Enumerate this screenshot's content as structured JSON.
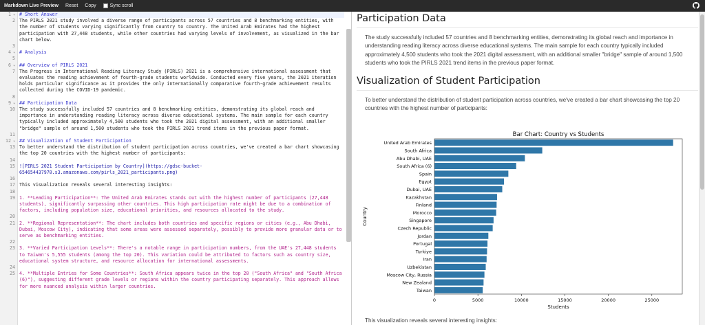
{
  "toolbar": {
    "title": "Markdown Live Preview",
    "reset": "Reset",
    "copy": "Copy",
    "sync_scroll": "Sync scroll"
  },
  "editor": {
    "lines": [
      {
        "n": "1",
        "fold": true,
        "cls": "h cursorline",
        "text": "# Short Answer"
      },
      {
        "n": "2",
        "cls": "",
        "text": "The PIRLS 2021 study involved a diverse range of participants across 57 countries and 8 benchmarking entities, with the number of students varying significantly from country to country. The United Arab Emirates had the highest participation with 27,448 students, while other countries had varying levels of involvement, as visualized in the bar chart below."
      },
      {
        "n": "3",
        "cls": "",
        "text": ""
      },
      {
        "n": "4",
        "fold": true,
        "cls": "h",
        "text": "# Analysis"
      },
      {
        "n": "5",
        "cls": "",
        "text": ""
      },
      {
        "n": "6",
        "fold": true,
        "cls": "h",
        "text": "## Overview of PIRLS 2021"
      },
      {
        "n": "7",
        "cls": "",
        "text": "The Progress in International Reading Literacy Study (PIRLS) 2021 is a comprehensive international assessment that evaluates the reading achievement of fourth-grade students worldwide. Conducted every five years, the 2021 iteration holds particular significance as it provides the only internationally comparative fourth-grade achievement results collected during the COVID-19 pandemic."
      },
      {
        "n": "8",
        "cls": "",
        "text": ""
      },
      {
        "n": "9",
        "fold": true,
        "cls": "h",
        "text": "## Participation Data"
      },
      {
        "n": "10",
        "cls": "",
        "text": "The study successfully included 57 countries and 8 benchmarking entities, demonstrating its global reach and importance in understanding reading literacy across diverse educational systems. The main sample for each country typically included approximately 4,500 students who took the 2021 digital assessment, with an additional smaller \"bridge\" sample of around 1,500 students who took the PIRLS 2021 trend items in the previous paper format."
      },
      {
        "n": "11",
        "cls": "",
        "text": ""
      },
      {
        "n": "12",
        "fold": true,
        "cls": "h",
        "text": "## Visualization of Student Participation"
      },
      {
        "n": "13",
        "cls": "",
        "text": "To better understand the distribution of student participation across countries, we've created a bar chart showcasing the top 20 countries with the highest number of participants:"
      },
      {
        "n": "14",
        "cls": "",
        "text": ""
      },
      {
        "n": "15",
        "cls": "link",
        "text": "![PIRLS 2021 Student Participation by Country](https://gdsc-bucket-654654437970.s3.amazonaws.com/pirls_2021_participants.png)"
      },
      {
        "n": "16",
        "cls": "",
        "text": ""
      },
      {
        "n": "17",
        "cls": "",
        "text": "This visualization reveals several interesting insights:"
      },
      {
        "n": "18",
        "cls": "",
        "text": ""
      },
      {
        "n": "19",
        "cls": "li",
        "text": "1. **Leading Participation**: The United Arab Emirates stands out with the highest number of participants (27,448 students), significantly surpassing other countries. This high participation rate might be due to a combination of factors, including population size, educational priorities, and resources allocated to the study."
      },
      {
        "n": "20",
        "cls": "",
        "text": ""
      },
      {
        "n": "21",
        "cls": "li",
        "text": "2. **Regional Representation**: The chart includes both countries and specific regions or cities (e.g., Abu Dhabi, Dubai, Moscow City), indicating that some areas were assessed separately, possibly to provide more granular data or to serve as benchmarking entities."
      },
      {
        "n": "22",
        "cls": "",
        "text": ""
      },
      {
        "n": "23",
        "cls": "li",
        "text": "3. **Varied Participation Levels**: There's a notable range in participation numbers, from the UAE's 27,448 students to Taiwan's 5,555 students (among the top 20). This variation could be attributed to factors such as country size, educational system structure, and resource allocation for international assessments."
      },
      {
        "n": "24",
        "cls": "",
        "text": ""
      },
      {
        "n": "25",
        "cls": "li",
        "text": "4. **Multiple Entries for Some Countries**: South Africa appears twice in the top 20 (\"South Africa\" and \"South Africa (6)\"), suggesting different grade levels or regions within the country participating separately. This approach allows for more nuanced analysis within larger countries."
      }
    ]
  },
  "preview": {
    "h_participation": "Participation Data",
    "p_participation": "The study successfully included 57 countries and 8 benchmarking entities, demonstrating its global reach and importance in understanding reading literacy across diverse educational systems. The main sample for each country typically included approximately 4,500 students who took the 2021 digital assessment, with an additional smaller \"bridge\" sample of around 1,500 students who took the PIRLS 2021 trend items in the previous paper format.",
    "h_visualization": "Visualization of Student Participation",
    "p_visualization": "To better understand the distribution of student participation across countries, we've created a bar chart showcasing the top 20 countries with the highest number of participants:",
    "p_insights": "This visualization reveals several interesting insights:"
  },
  "chart_data": {
    "type": "bar",
    "orientation": "horizontal",
    "title": "Bar Chart: Country vs Students",
    "xlabel": "Students",
    "ylabel": "Country",
    "categories": [
      "United Arab Emirates",
      "South Africa",
      "Abu Dhabi, UAE",
      "South Africa (6)",
      "Spain",
      "Egypt",
      "Dubai, UAE",
      "Kazakhstan",
      "Finland",
      "Morocco",
      "Singapore",
      "Czech Republic",
      "Jordan",
      "Portugal",
      "Turkiye",
      "Iran",
      "Uzbekistan",
      "Moscow City, Russia",
      "New Zealand",
      "Taiwan"
    ],
    "values": [
      27448,
      12400,
      10400,
      9400,
      8500,
      8000,
      7800,
      7200,
      7150,
      7100,
      6800,
      6700,
      6200,
      6100,
      6050,
      6000,
      5900,
      5750,
      5650,
      5555
    ],
    "xlim": [
      0,
      28500
    ],
    "xticks": [
      0,
      5000,
      10000,
      15000,
      20000,
      25000
    ],
    "bar_color": "#2f77a8"
  }
}
